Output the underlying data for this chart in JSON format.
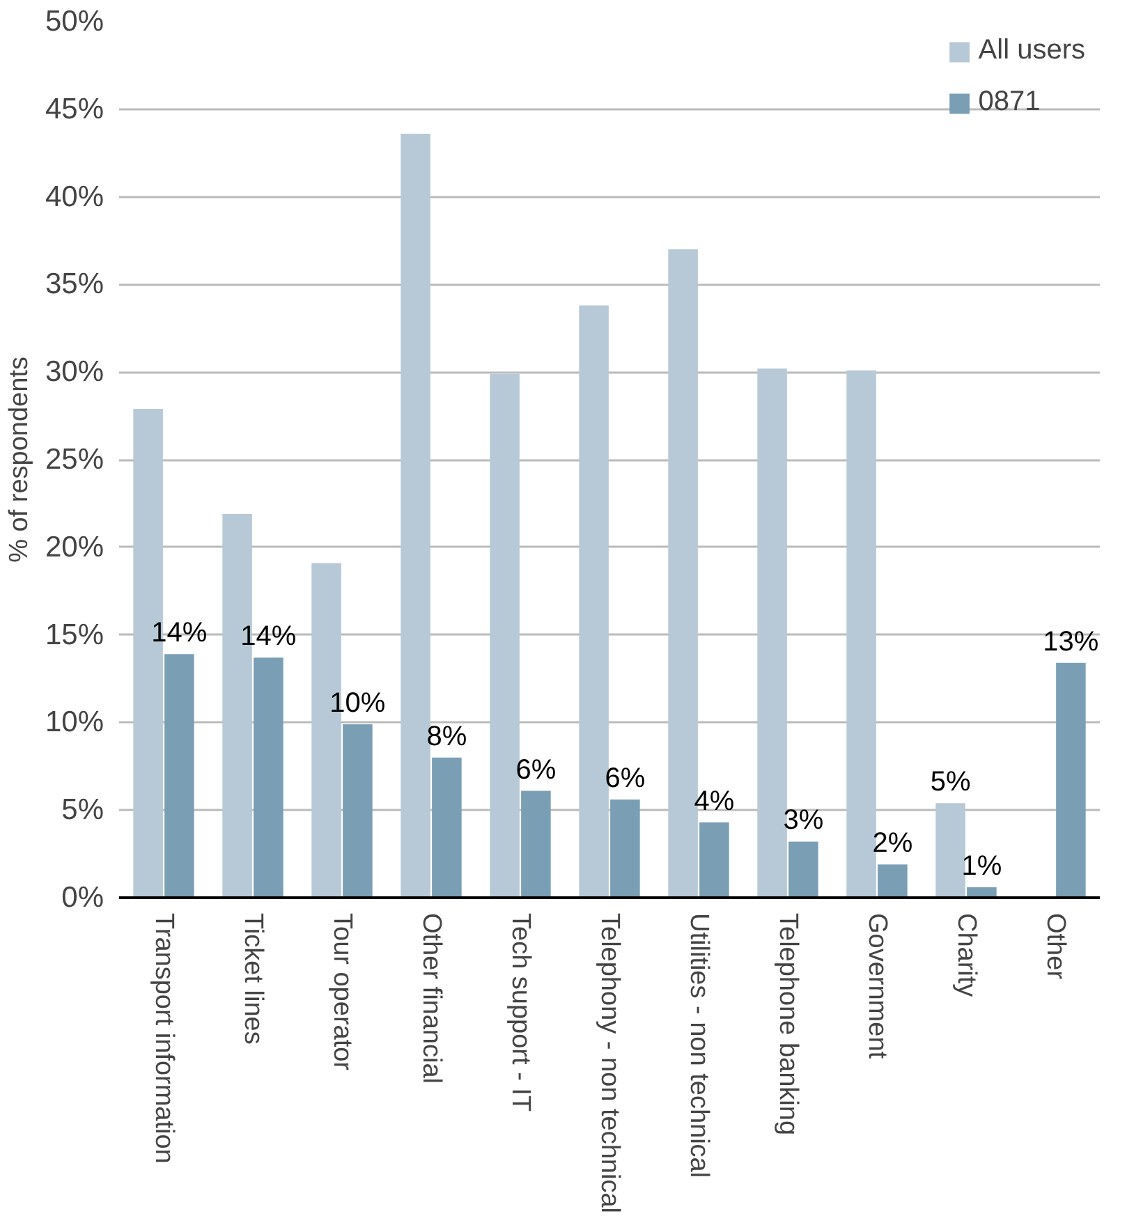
{
  "chart_data": {
    "type": "bar",
    "ylabel": "% of respondents",
    "categories": [
      "Transport information",
      "Ticket lines",
      "Tour operator",
      "Other financial",
      "Tech support - IT",
      "Telephony - non technical",
      "Utilities - non technical",
      "Telephone banking",
      "Government",
      "Charity",
      "Other"
    ],
    "series": [
      {
        "name": "All users",
        "color": "#b7c9d6",
        "values": [
          27.9,
          21.9,
          19.1,
          43.6,
          29.9,
          33.8,
          37.0,
          30.2,
          30.1,
          5.4,
          null
        ],
        "value_labels": [
          null,
          null,
          null,
          null,
          null,
          null,
          null,
          null,
          null,
          "5%",
          null
        ]
      },
      {
        "name": "0871",
        "color": "#7a9fb5",
        "values": [
          13.9,
          13.7,
          9.9,
          8.0,
          6.1,
          5.6,
          4.3,
          3.2,
          1.9,
          0.6,
          13.4
        ],
        "value_labels": [
          "14%",
          "14%",
          "10%",
          "8%",
          "6%",
          "6%",
          "4%",
          "3%",
          "2%",
          "1%",
          "13%"
        ]
      }
    ],
    "ylim": [
      0,
      50
    ],
    "yticks": [
      {
        "value": 0,
        "label": "0%"
      },
      {
        "value": 5,
        "label": "5%"
      },
      {
        "value": 10,
        "label": "10%"
      },
      {
        "value": 15,
        "label": "15%"
      },
      {
        "value": 20,
        "label": "20%"
      },
      {
        "value": 25,
        "label": "25%"
      },
      {
        "value": 30,
        "label": "30%"
      },
      {
        "value": 35,
        "label": "35%"
      },
      {
        "value": 40,
        "label": "40%"
      },
      {
        "value": 45,
        "label": "45%"
      },
      {
        "value": 50,
        "label": "50%"
      }
    ],
    "grid": "y",
    "legend": "top right"
  }
}
